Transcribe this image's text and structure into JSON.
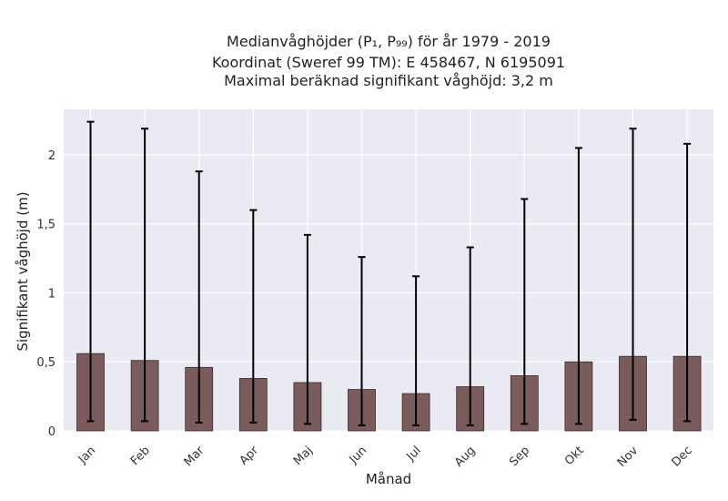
{
  "chart_data": {
    "type": "bar",
    "title_lines": [
      "Medianvåghöjder (P₁, P₉₉) för år 1979 - 2019",
      "Koordinat (Sweref 99 TM): E 458467, N 6195091",
      "Maximal beräknad signifikant våghöjd: 3,2 m"
    ],
    "xlabel": "Månad",
    "ylabel": "Signifikant våghöjd (m)",
    "categories": [
      "Jan",
      "Feb",
      "Mar",
      "Apr",
      "Maj",
      "Jun",
      "Jul",
      "Aug",
      "Sep",
      "Okt",
      "Nov",
      "Dec"
    ],
    "values": [
      0.56,
      0.51,
      0.46,
      0.38,
      0.35,
      0.3,
      0.27,
      0.32,
      0.4,
      0.5,
      0.54,
      0.54
    ],
    "p1": [
      0.07,
      0.07,
      0.06,
      0.06,
      0.05,
      0.04,
      0.04,
      0.04,
      0.05,
      0.05,
      0.08,
      0.07
    ],
    "p99": [
      2.24,
      2.19,
      1.88,
      1.6,
      1.42,
      1.26,
      1.12,
      1.33,
      1.68,
      2.05,
      2.19,
      2.08
    ],
    "ylim": [
      0,
      2.33
    ],
    "yticks": [
      0,
      0.5,
      1,
      1.5,
      2
    ],
    "ytick_labels": [
      "0",
      "0,5",
      "1",
      "1,5",
      "2"
    ],
    "grid": true,
    "colors": {
      "background": "#eaeaf2",
      "bar": "#7b5b5b",
      "errorbar": "#000000",
      "grid": "#ffffff"
    }
  }
}
